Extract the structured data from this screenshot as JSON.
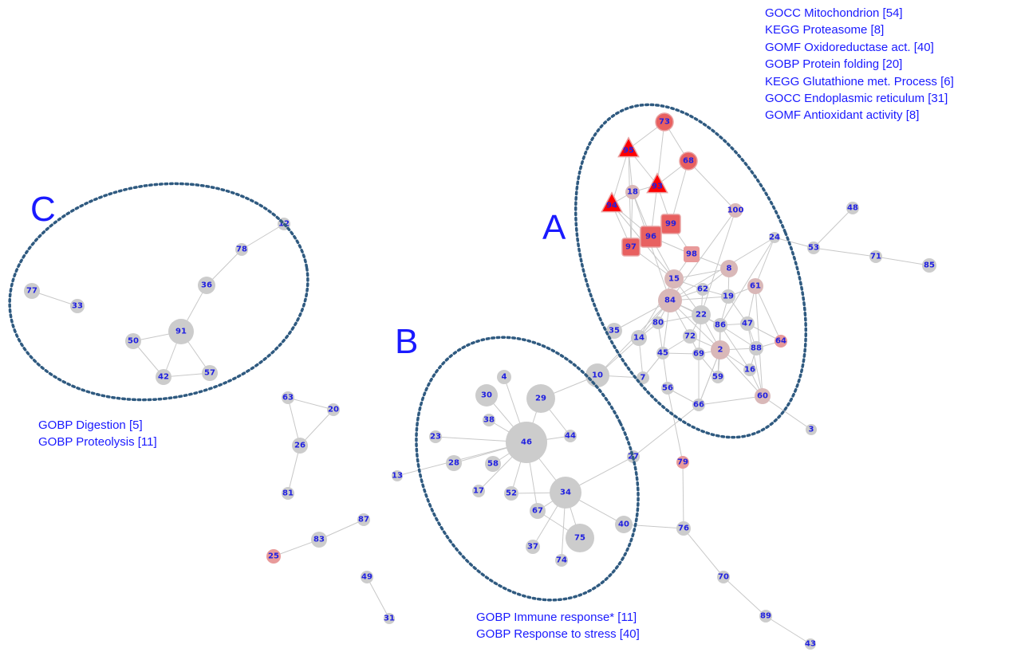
{
  "colors": {
    "edge": "#c8c8c8",
    "node_default": "#cccccc",
    "node_light": "#d9b8b8",
    "node_medium": "#e89a9a",
    "node_strong": "#e86060",
    "node_triangle": "#ff0000",
    "label": "#2020e0",
    "cluster_outline": "#2f5a80",
    "annotation_text": "#1a1aff"
  },
  "clusters": [
    {
      "id": "A",
      "label": "A"
    },
    {
      "id": "B",
      "label": "B"
    },
    {
      "id": "C",
      "label": "C"
    }
  ],
  "annotations": {
    "cluster_a": [
      "GOCC Mitochondrion [54]",
      "KEGG Proteasome [8]",
      "GOMF Oxidoreductase act. [40]",
      "GOBP Protein folding [20]",
      "KEGG Glutathione met. Process [6]",
      "GOCC Endoplasmic reticulum [31]",
      "GOMF Antioxidant activity [8]"
    ],
    "cluster_b": [
      "GOBP Immune response* [11]",
      "GOBP Response to stress [40]"
    ],
    "cluster_c": [
      "GOBP Digestion [5]",
      "GOBP Proteolysis [11]"
    ]
  },
  "nodes": [
    {
      "id": "73",
      "shape": "circle",
      "fill": "strong"
    },
    {
      "id": "95",
      "shape": "triangle",
      "fill": "triangle"
    },
    {
      "id": "68",
      "shape": "circle",
      "fill": "strong"
    },
    {
      "id": "93",
      "shape": "triangle",
      "fill": "triangle"
    },
    {
      "id": "18",
      "shape": "circle",
      "fill": "light"
    },
    {
      "id": "94",
      "shape": "triangle",
      "fill": "triangle"
    },
    {
      "id": "100",
      "shape": "circle",
      "fill": "light"
    },
    {
      "id": "99",
      "shape": "square",
      "fill": "strong"
    },
    {
      "id": "96",
      "shape": "square",
      "fill": "strong"
    },
    {
      "id": "97",
      "shape": "square",
      "fill": "strong"
    },
    {
      "id": "98",
      "shape": "square",
      "fill": "medium"
    },
    {
      "id": "24",
      "shape": "circle",
      "fill": "default"
    },
    {
      "id": "8",
      "shape": "circle",
      "fill": "light"
    },
    {
      "id": "15",
      "shape": "circle",
      "fill": "light"
    },
    {
      "id": "61",
      "shape": "circle",
      "fill": "light"
    },
    {
      "id": "62",
      "shape": "circle",
      "fill": "default"
    },
    {
      "id": "19",
      "shape": "circle",
      "fill": "default"
    },
    {
      "id": "84",
      "shape": "circle",
      "fill": "light"
    },
    {
      "id": "22",
      "shape": "circle",
      "fill": "default"
    },
    {
      "id": "80",
      "shape": "circle",
      "fill": "default"
    },
    {
      "id": "86",
      "shape": "circle",
      "fill": "default"
    },
    {
      "id": "47",
      "shape": "circle",
      "fill": "default"
    },
    {
      "id": "35",
      "shape": "circle",
      "fill": "default"
    },
    {
      "id": "72",
      "shape": "circle",
      "fill": "default"
    },
    {
      "id": "14",
      "shape": "circle",
      "fill": "default"
    },
    {
      "id": "64",
      "shape": "circle",
      "fill": "medium"
    },
    {
      "id": "45",
      "shape": "circle",
      "fill": "default"
    },
    {
      "id": "69",
      "shape": "circle",
      "fill": "default"
    },
    {
      "id": "2",
      "shape": "circle",
      "fill": "light"
    },
    {
      "id": "88",
      "shape": "circle",
      "fill": "default"
    },
    {
      "id": "59",
      "shape": "circle",
      "fill": "default"
    },
    {
      "id": "16",
      "shape": "circle",
      "fill": "default"
    },
    {
      "id": "10",
      "shape": "circle",
      "fill": "default"
    },
    {
      "id": "7",
      "shape": "circle",
      "fill": "default"
    },
    {
      "id": "56",
      "shape": "circle",
      "fill": "default"
    },
    {
      "id": "60",
      "shape": "circle",
      "fill": "light"
    },
    {
      "id": "66",
      "shape": "circle",
      "fill": "default"
    },
    {
      "id": "3",
      "shape": "circle",
      "fill": "default"
    },
    {
      "id": "48",
      "shape": "circle",
      "fill": "default"
    },
    {
      "id": "53",
      "shape": "circle",
      "fill": "default"
    },
    {
      "id": "71",
      "shape": "circle",
      "fill": "default"
    },
    {
      "id": "85",
      "shape": "circle",
      "fill": "default"
    },
    {
      "id": "79",
      "shape": "circle",
      "fill": "medium"
    },
    {
      "id": "27",
      "shape": "circle",
      "fill": "default"
    },
    {
      "id": "76",
      "shape": "circle",
      "fill": "default"
    },
    {
      "id": "70",
      "shape": "circle",
      "fill": "default"
    },
    {
      "id": "89",
      "shape": "circle",
      "fill": "default"
    },
    {
      "id": "43",
      "shape": "circle",
      "fill": "default"
    },
    {
      "id": "4",
      "shape": "circle",
      "fill": "default"
    },
    {
      "id": "30",
      "shape": "circle",
      "fill": "default"
    },
    {
      "id": "29",
      "shape": "circle",
      "fill": "default"
    },
    {
      "id": "38",
      "shape": "circle",
      "fill": "default"
    },
    {
      "id": "46",
      "shape": "circle",
      "fill": "default"
    },
    {
      "id": "44",
      "shape": "circle",
      "fill": "default"
    },
    {
      "id": "23",
      "shape": "circle",
      "fill": "default"
    },
    {
      "id": "28",
      "shape": "circle",
      "fill": "default"
    },
    {
      "id": "58",
      "shape": "circle",
      "fill": "default"
    },
    {
      "id": "13",
      "shape": "circle",
      "fill": "default"
    },
    {
      "id": "17",
      "shape": "circle",
      "fill": "default"
    },
    {
      "id": "52",
      "shape": "circle",
      "fill": "default"
    },
    {
      "id": "34",
      "shape": "circle",
      "fill": "default"
    },
    {
      "id": "67",
      "shape": "circle",
      "fill": "default"
    },
    {
      "id": "40",
      "shape": "circle",
      "fill": "default"
    },
    {
      "id": "37",
      "shape": "circle",
      "fill": "default"
    },
    {
      "id": "75",
      "shape": "circle",
      "fill": "default"
    },
    {
      "id": "74",
      "shape": "circle",
      "fill": "default"
    },
    {
      "id": "12",
      "shape": "circle",
      "fill": "default"
    },
    {
      "id": "78",
      "shape": "circle",
      "fill": "default"
    },
    {
      "id": "36",
      "shape": "circle",
      "fill": "default"
    },
    {
      "id": "77",
      "shape": "circle",
      "fill": "default"
    },
    {
      "id": "33",
      "shape": "circle",
      "fill": "default"
    },
    {
      "id": "91",
      "shape": "circle",
      "fill": "default"
    },
    {
      "id": "50",
      "shape": "circle",
      "fill": "default"
    },
    {
      "id": "42",
      "shape": "circle",
      "fill": "default"
    },
    {
      "id": "57",
      "shape": "circle",
      "fill": "default"
    },
    {
      "id": "63",
      "shape": "circle",
      "fill": "default"
    },
    {
      "id": "20",
      "shape": "circle",
      "fill": "default"
    },
    {
      "id": "26",
      "shape": "circle",
      "fill": "default"
    },
    {
      "id": "81",
      "shape": "circle",
      "fill": "default"
    },
    {
      "id": "87",
      "shape": "circle",
      "fill": "default"
    },
    {
      "id": "83",
      "shape": "circle",
      "fill": "default"
    },
    {
      "id": "25",
      "shape": "circle",
      "fill": "medium"
    },
    {
      "id": "49",
      "shape": "circle",
      "fill": "default"
    },
    {
      "id": "31",
      "shape": "circle",
      "fill": "default"
    }
  ],
  "edges": [
    [
      "73",
      "95"
    ],
    [
      "73",
      "68"
    ],
    [
      "73",
      "93"
    ],
    [
      "95",
      "93"
    ],
    [
      "95",
      "18"
    ],
    [
      "95",
      "94"
    ],
    [
      "95",
      "97"
    ],
    [
      "68",
      "93"
    ],
    [
      "68",
      "100"
    ],
    [
      "68",
      "99"
    ],
    [
      "93",
      "18"
    ],
    [
      "93",
      "99"
    ],
    [
      "93",
      "96"
    ],
    [
      "18",
      "94"
    ],
    [
      "18",
      "96"
    ],
    [
      "18",
      "97"
    ],
    [
      "18",
      "84"
    ],
    [
      "94",
      "97"
    ],
    [
      "94",
      "96"
    ],
    [
      "94",
      "15"
    ],
    [
      "99",
      "96"
    ],
    [
      "99",
      "98"
    ],
    [
      "96",
      "97"
    ],
    [
      "96",
      "98"
    ],
    [
      "96",
      "15"
    ],
    [
      "97",
      "15"
    ],
    [
      "98",
      "15"
    ],
    [
      "98",
      "8"
    ],
    [
      "100",
      "84"
    ],
    [
      "100",
      "22"
    ],
    [
      "24",
      "53"
    ],
    [
      "24",
      "61"
    ],
    [
      "24",
      "84"
    ],
    [
      "24",
      "86"
    ],
    [
      "8",
      "15"
    ],
    [
      "8",
      "19"
    ],
    [
      "8",
      "62"
    ],
    [
      "15",
      "84"
    ],
    [
      "15",
      "62"
    ],
    [
      "15",
      "22"
    ],
    [
      "15",
      "14"
    ],
    [
      "61",
      "19"
    ],
    [
      "61",
      "64"
    ],
    [
      "61",
      "47"
    ],
    [
      "61",
      "60"
    ],
    [
      "84",
      "62"
    ],
    [
      "84",
      "22"
    ],
    [
      "84",
      "80"
    ],
    [
      "84",
      "14"
    ],
    [
      "84",
      "35"
    ],
    [
      "84",
      "45"
    ],
    [
      "84",
      "72"
    ],
    [
      "84",
      "86"
    ],
    [
      "84",
      "2"
    ],
    [
      "84",
      "19"
    ],
    [
      "84",
      "10"
    ],
    [
      "62",
      "19"
    ],
    [
      "62",
      "22"
    ],
    [
      "22",
      "86"
    ],
    [
      "22",
      "72"
    ],
    [
      "22",
      "2"
    ],
    [
      "22",
      "80"
    ],
    [
      "22",
      "69"
    ],
    [
      "19",
      "86"
    ],
    [
      "19",
      "47"
    ],
    [
      "86",
      "47"
    ],
    [
      "86",
      "2"
    ],
    [
      "86",
      "88"
    ],
    [
      "86",
      "59"
    ],
    [
      "86",
      "16"
    ],
    [
      "47",
      "88"
    ],
    [
      "47",
      "64"
    ],
    [
      "47",
      "60"
    ],
    [
      "80",
      "14"
    ],
    [
      "80",
      "45"
    ],
    [
      "72",
      "69"
    ],
    [
      "72",
      "2"
    ],
    [
      "72",
      "45"
    ],
    [
      "14",
      "7"
    ],
    [
      "14",
      "10"
    ],
    [
      "45",
      "69"
    ],
    [
      "45",
      "56"
    ],
    [
      "45",
      "7"
    ],
    [
      "69",
      "2"
    ],
    [
      "69",
      "59"
    ],
    [
      "69",
      "66"
    ],
    [
      "2",
      "88"
    ],
    [
      "2",
      "59"
    ],
    [
      "2",
      "16"
    ],
    [
      "2",
      "60"
    ],
    [
      "2",
      "66"
    ],
    [
      "88",
      "64"
    ],
    [
      "88",
      "16"
    ],
    [
      "16",
      "60"
    ],
    [
      "60",
      "66"
    ],
    [
      "60",
      "3"
    ],
    [
      "66",
      "56"
    ],
    [
      "66",
      "27"
    ],
    [
      "66",
      "2"
    ],
    [
      "10",
      "7"
    ],
    [
      "10",
      "29"
    ],
    [
      "53",
      "48"
    ],
    [
      "53",
      "71"
    ],
    [
      "71",
      "85"
    ],
    [
      "56",
      "79"
    ],
    [
      "79",
      "76"
    ],
    [
      "27",
      "34"
    ],
    [
      "76",
      "40"
    ],
    [
      "76",
      "70"
    ],
    [
      "70",
      "89"
    ],
    [
      "89",
      "43"
    ],
    [
      "46",
      "4"
    ],
    [
      "46",
      "30"
    ],
    [
      "46",
      "29"
    ],
    [
      "46",
      "38"
    ],
    [
      "46",
      "44"
    ],
    [
      "46",
      "23"
    ],
    [
      "46",
      "28"
    ],
    [
      "46",
      "58"
    ],
    [
      "46",
      "13"
    ],
    [
      "46",
      "17"
    ],
    [
      "46",
      "52"
    ],
    [
      "46",
      "34"
    ],
    [
      "46",
      "67"
    ],
    [
      "29",
      "44"
    ],
    [
      "34",
      "52"
    ],
    [
      "34",
      "67"
    ],
    [
      "34",
      "40"
    ],
    [
      "34",
      "37"
    ],
    [
      "34",
      "75"
    ],
    [
      "34",
      "74"
    ],
    [
      "75",
      "67"
    ],
    [
      "12",
      "78"
    ],
    [
      "78",
      "36"
    ],
    [
      "36",
      "91"
    ],
    [
      "91",
      "50"
    ],
    [
      "91",
      "42"
    ],
    [
      "91",
      "57"
    ],
    [
      "50",
      "42"
    ],
    [
      "42",
      "57"
    ],
    [
      "77",
      "33"
    ],
    [
      "63",
      "20"
    ],
    [
      "63",
      "26"
    ],
    [
      "20",
      "26"
    ],
    [
      "26",
      "81"
    ],
    [
      "87",
      "83"
    ],
    [
      "83",
      "25"
    ],
    [
      "49",
      "31"
    ]
  ]
}
